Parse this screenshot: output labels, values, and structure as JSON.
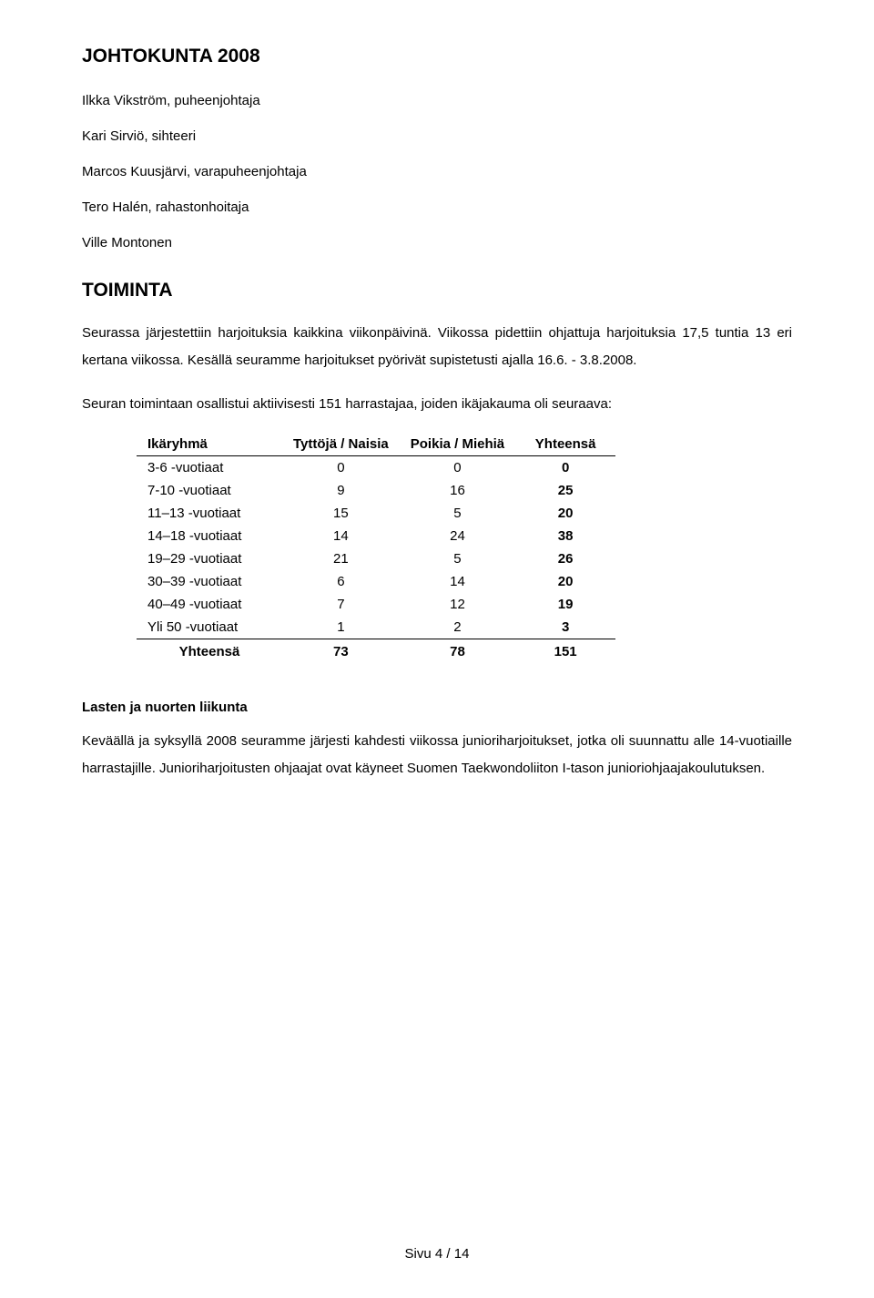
{
  "title": "JOHTOKUNTA 2008",
  "board": [
    "Ilkka Vikström, puheenjohtaja",
    "Kari Sirviö, sihteeri",
    "Marcos Kuusjärvi, varapuheenjohtaja",
    "Tero Halén, rahastonhoitaja",
    "Ville Montonen"
  ],
  "section_title": "TOIMINTA",
  "para1": "Seurassa järjestettiin harjoituksia kaikkina viikonpäivinä. Viikossa pidettiin ohjattuja harjoituksia 17,5 tuntia 13 eri kertana viikossa. Kesällä seuramme harjoitukset pyörivät supistetusti ajalla 16.6. - 3.8.2008.",
  "para2": "Seuran toimintaan osallistui aktiivisesti 151 harrastajaa, joiden ikäjakauma oli seuraava:",
  "table": {
    "headers": [
      "Ikäryhmä",
      "Tyttöjä / Naisia",
      "Poikia / Miehiä",
      "Yhteensä"
    ],
    "rows": [
      {
        "label": "3-6 -vuotiaat",
        "a": "0",
        "b": "0",
        "c": "0"
      },
      {
        "label": "7-10 -vuotiaat",
        "a": "9",
        "b": "16",
        "c": "25"
      },
      {
        "label": "11–13 -vuotiaat",
        "a": "15",
        "b": "5",
        "c": "20"
      },
      {
        "label": "14–18 -vuotiaat",
        "a": "14",
        "b": "24",
        "c": "38"
      },
      {
        "label": "19–29 -vuotiaat",
        "a": "21",
        "b": "5",
        "c": "26"
      },
      {
        "label": "30–39 -vuotiaat",
        "a": "6",
        "b": "14",
        "c": "20"
      },
      {
        "label": "40–49 -vuotiaat",
        "a": "7",
        "b": "12",
        "c": "19"
      },
      {
        "label": "Yli 50 -vuotiaat",
        "a": "1",
        "b": "2",
        "c": "3"
      }
    ],
    "total": {
      "label": "Yhteensä",
      "a": "73",
      "b": "78",
      "c": "151"
    }
  },
  "sub_heading": "Lasten ja nuorten liikunta",
  "para3": "Keväällä ja syksyllä 2008 seuramme järjesti kahdesti viikossa junioriharjoitukset, jotka oli suunnattu alle 14-vuotiaille harrastajille. Junioriharjoitusten ohjaajat ovat käyneet Suomen Taekwondoliiton I-tason junioriohjaajakoulutuksen.",
  "footer": "Sivu 4 / 14",
  "colors": {
    "text": "#000000",
    "background": "#ffffff",
    "table_total_bold": true
  },
  "typography": {
    "body_fontsize_pt": 11,
    "heading_fontsize_pt": 16,
    "font_family": "Arial"
  }
}
